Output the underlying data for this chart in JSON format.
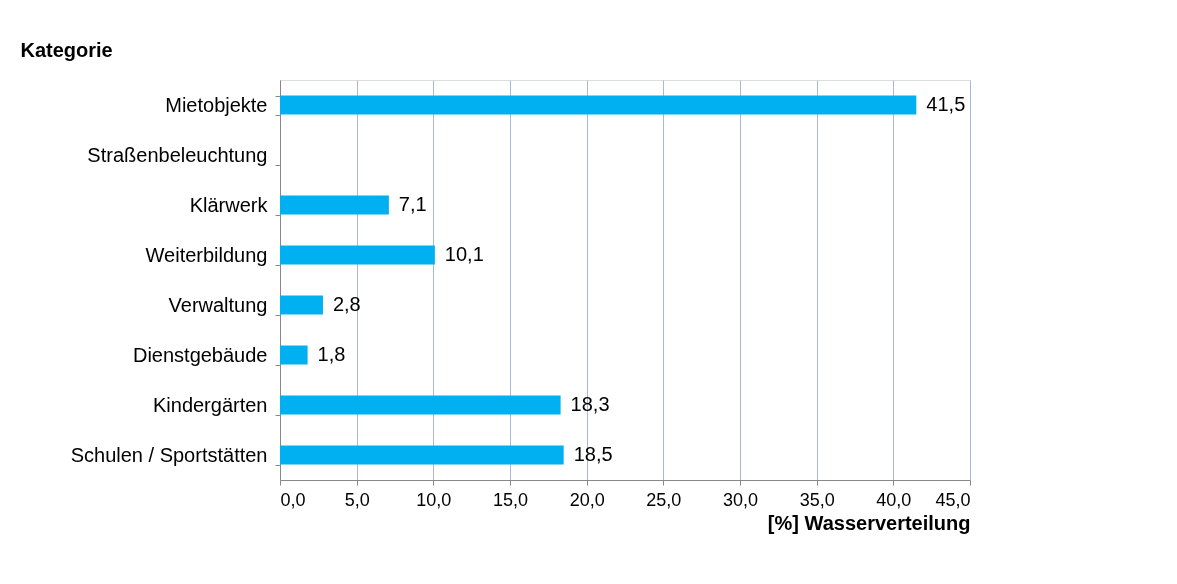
{
  "chart_data": {
    "type": "bar",
    "orientation": "horizontal",
    "xlabel": "[%] Wasserverteilung",
    "ylabel": "Kategorie",
    "categories": [
      "Mietobjekte",
      "Straßenbeleuchtung",
      "Klärwerk",
      "Weiterbildung",
      "Verwaltung",
      "Dienstgebäude",
      "Kindergärten",
      "Schulen / Sportstätten"
    ],
    "values": [
      41.5,
      null,
      7.1,
      10.1,
      2.8,
      1.8,
      18.3,
      18.5
    ],
    "value_labels": [
      "41,5",
      null,
      "7,1",
      "10,1",
      "2,8",
      "1,8",
      "18,3",
      "18,5"
    ],
    "color": "#00b0f0",
    "xlim": [
      0,
      45
    ],
    "xticks": [
      {
        "value": 0,
        "label": "0,0"
      },
      {
        "value": 5,
        "label": "5,0"
      },
      {
        "value": 10,
        "label": "10,0"
      },
      {
        "value": 15,
        "label": "15,0"
      },
      {
        "value": 20,
        "label": "20,0"
      },
      {
        "value": 25,
        "label": "25,0"
      },
      {
        "value": 30,
        "label": "30,0"
      },
      {
        "value": 35,
        "label": "35,0"
      },
      {
        "value": 40,
        "label": "40,0"
      },
      {
        "value": 45,
        "label": "45,0"
      }
    ],
    "grid": "x"
  }
}
